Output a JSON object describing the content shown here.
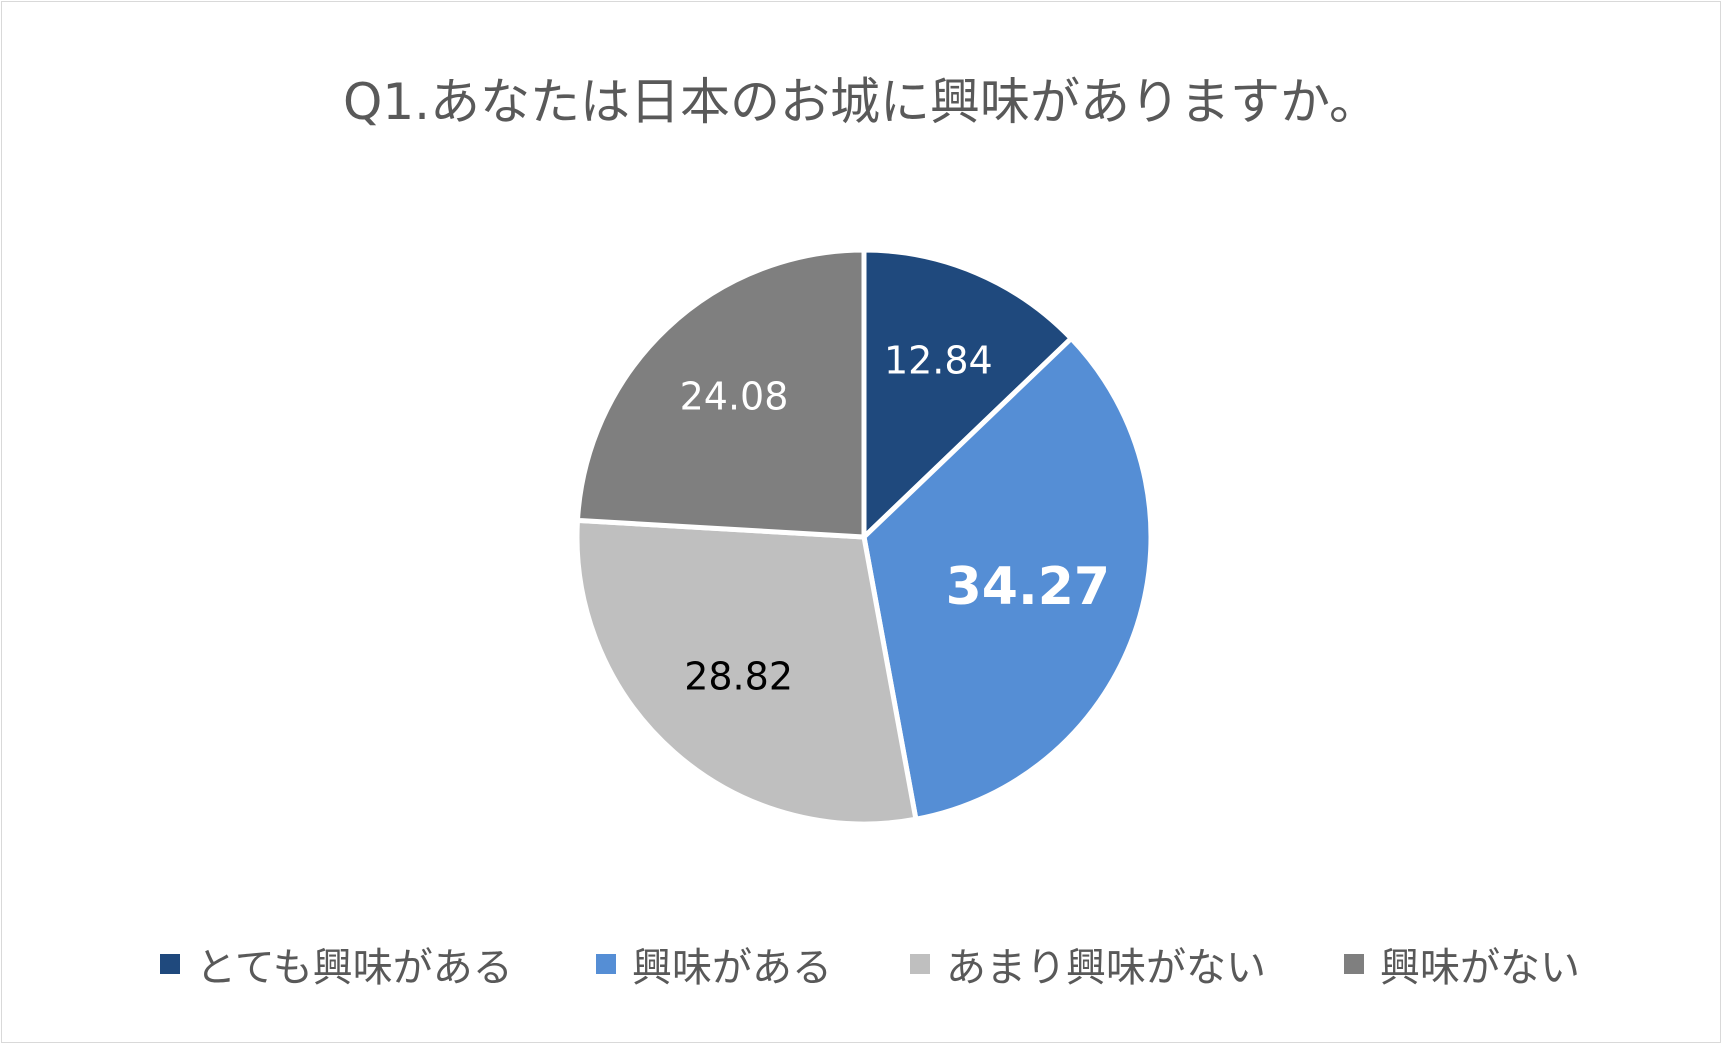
{
  "chart_data": {
    "type": "pie",
    "title": "Q1.あなたは日本のお城に興味がありますか。",
    "categories": [
      "とても興味がある",
      "興味がある",
      "あまり興味がない",
      "興味がない"
    ],
    "values": [
      12.84,
      34.27,
      28.82,
      24.08
    ],
    "value_labels": [
      "12.84",
      "34.27",
      "28.82",
      "24.08"
    ],
    "colors": [
      "#1F497D",
      "#558ED5",
      "#BFBFBF",
      "#7F7F7F"
    ],
    "label_colors": [
      "#FFFFFF",
      "#FFFFFF",
      "#000000",
      "#FFFFFF"
    ],
    "label_bold": [
      false,
      true,
      false,
      false
    ],
    "start_angle": "12 o'clock",
    "direction": "clockwise",
    "legend_position": "bottom"
  }
}
